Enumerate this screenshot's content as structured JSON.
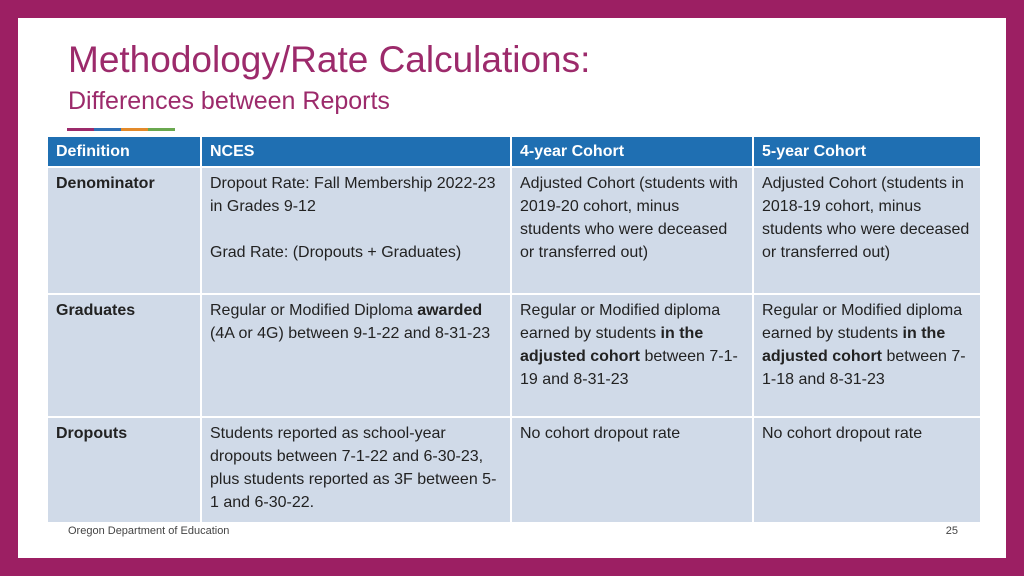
{
  "slide": {
    "title": "Methodology/Rate Calculations:",
    "subtitle": "Differences between Reports",
    "accent_colors": [
      "#9c2a6b",
      "#2e6fb5",
      "#e38a2a",
      "#6aa84f"
    ]
  },
  "table": {
    "headers": [
      "Definition",
      "NCES",
      "4-year Cohort",
      "5-year Cohort"
    ],
    "rows": {
      "denominator": {
        "label": "Denominator",
        "nces_line1": "Dropout Rate: Fall Membership 2022-23 in Grades 9-12",
        "nces_line2": "Grad Rate: (Dropouts + Graduates)",
        "cohort4": "Adjusted Cohort (students with 2019-20 cohort, minus students who were deceased or transferred out)",
        "cohort5": "Adjusted Cohort (students in 2018-19 cohort, minus students who were deceased or transferred out)"
      },
      "graduates": {
        "label": "Graduates",
        "nces_a": "Regular or Modified Diploma ",
        "nces_b": "awarded",
        "nces_c": " (4A or 4G) between 9-1-22 and 8-31-23",
        "cohort4_a": "Regular or Modified diploma earned by students ",
        "cohort4_b": "in the adjusted cohort",
        "cohort4_c": " between 7-1-19 and 8-31-23",
        "cohort5_a": "Regular or Modified diploma earned by students ",
        "cohort5_b": "in the adjusted cohort",
        "cohort5_c": " between 7-1-18 and 8-31-23"
      },
      "dropouts": {
        "label": "Dropouts",
        "nces": "Students reported as school-year dropouts between 7-1-22 and 6-30-23, plus students reported as 3F between 5-1 and 6-30-22.",
        "cohort4": "No cohort dropout rate",
        "cohort5": "No cohort dropout rate"
      }
    }
  },
  "footer": {
    "organization": "Oregon Department of Education",
    "page_number": "25"
  }
}
